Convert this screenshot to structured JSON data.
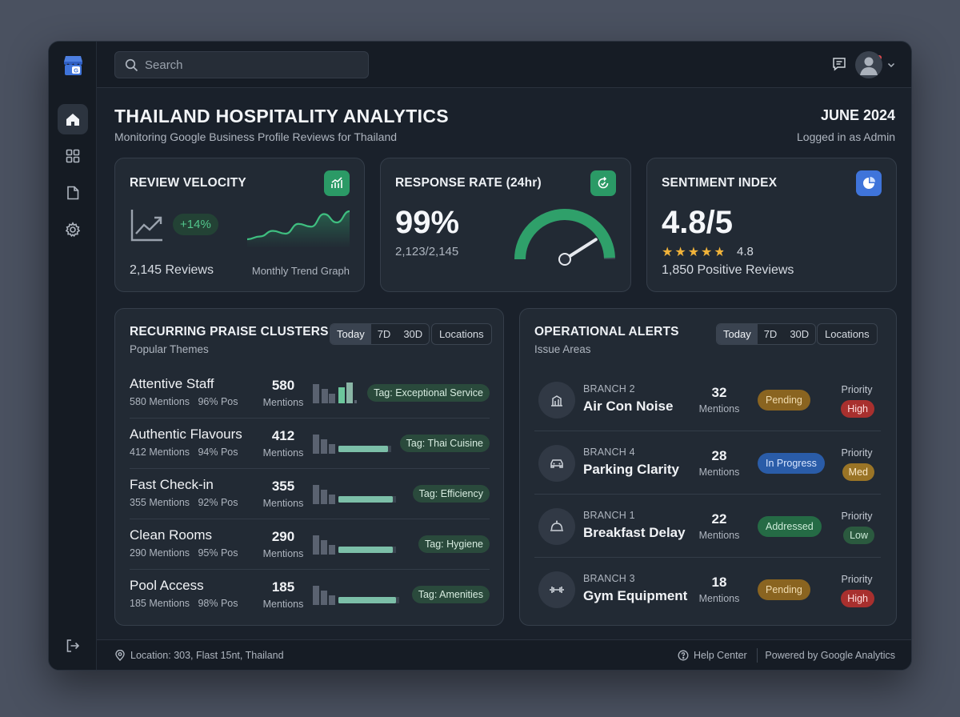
{
  "search": {
    "placeholder": "Search"
  },
  "header": {
    "title": "THAILAND HOSPITALITY ANALYTICS",
    "subtitle": "Monitoring Google Business Profile Reviews for Thailand",
    "date": "JUNE 2024",
    "user": "Logged in as Admin"
  },
  "kpis": {
    "velocity": {
      "title": "REVIEW VELOCITY",
      "change": "+14%",
      "reviews": "2,145 Reviews",
      "graph_label": "Monthly Trend Graph",
      "trend": [
        22,
        26,
        34,
        30,
        44,
        40,
        58,
        46,
        62
      ]
    },
    "response": {
      "title": "RESPONSE RATE (24hr)",
      "value": "99%",
      "detail": "2,123/2,145",
      "gauge_fraction": 0.99
    },
    "sentiment": {
      "title": "SENTIMENT INDEX",
      "value": "4.8/5",
      "rating": "4.8",
      "rating_value": 4.8,
      "positive": "1,850 Positive Reviews"
    }
  },
  "praise": {
    "title": "RECURRING PRAISE CLUSTERS",
    "subtitle": "Popular Themes",
    "ranges": [
      "Today",
      "7D",
      "30D"
    ],
    "locations_label": "Locations",
    "mentions_label": "Mentions",
    "rows": [
      {
        "name": "Attentive Staff",
        "meta": "580 Mentions   96% Pos",
        "count": "580",
        "tag": "Tag: Exceptional Service"
      },
      {
        "name": "Authentic Flavours",
        "meta": "412 Mentions   94% Pos",
        "count": "412",
        "tag": "Tag: Thai Cuisine"
      },
      {
        "name": "Fast Check-in",
        "meta": "355 Mentions   92% Pos",
        "count": "355",
        "tag": "Tag: Efficiency"
      },
      {
        "name": "Clean Rooms",
        "meta": "290 Mentions   95% Pos",
        "count": "290",
        "tag": "Tag: Hygiene"
      },
      {
        "name": "Pool Access",
        "meta": "185 Mentions   98% Pos",
        "count": "185",
        "tag": "Tag: Amenities"
      }
    ]
  },
  "alerts": {
    "title": "OPERATIONAL ALERTS",
    "subtitle": "Issue Areas",
    "ranges": [
      "Today",
      "7D",
      "30D"
    ],
    "locations_label": "Locations",
    "mentions_label": "Mentions",
    "priority_label": "Priority",
    "rows": [
      {
        "branch": "BRANCH 2",
        "name": "Air Con Noise",
        "count": "32",
        "status": "Pending",
        "priority": "High",
        "icon": "building-icon"
      },
      {
        "branch": "BRANCH 4",
        "name": "Parking Clarity",
        "count": "28",
        "status": "In Progress",
        "priority": "Med",
        "icon": "car-icon"
      },
      {
        "branch": "BRANCH 1",
        "name": "Breakfast Delay",
        "count": "22",
        "status": "Addressed",
        "priority": "Low",
        "icon": "cloche-icon"
      },
      {
        "branch": "BRANCH 3",
        "name": "Gym Equipment",
        "count": "18",
        "status": "Pending",
        "priority": "High",
        "icon": "dumbbell-icon"
      }
    ]
  },
  "footer": {
    "location": "Location: 303, Flast 15nt, Thailand",
    "help": "Help Center",
    "powered": "Powered by Google Analytics"
  },
  "colors": {
    "accent_green": "#2fa06a",
    "pending": "#8a6420",
    "in_progress": "#2a5ca8",
    "addressed": "#256b45",
    "high": "#a8302e",
    "med": "#9a7426",
    "low": "#2b5a3f"
  }
}
